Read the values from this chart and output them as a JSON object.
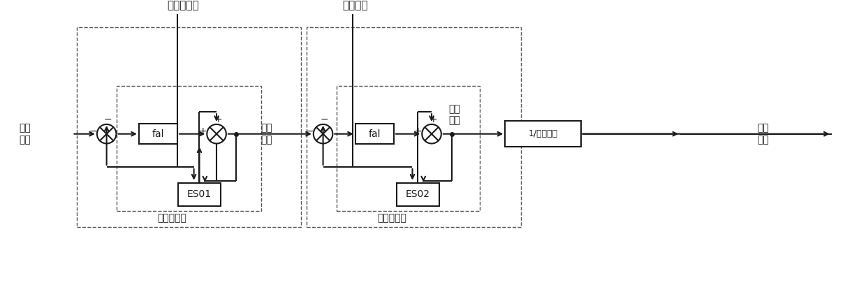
{
  "bg_color": "#ffffff",
  "line_color": "#1a1a1a",
  "dashed_color": "#555555",
  "text_color": "#1a1a1a",
  "figsize": [
    12.4,
    4.18
  ],
  "dpi": 100,
  "labels": {
    "pump_pressure": "泵出口压力",
    "motor_speed": "电机转速",
    "desired_pressure": "期望\n压力",
    "desired_speed": "期望\n转速",
    "desired_torque": "期望\n转矩",
    "desired_current": "期望\n电流",
    "pressure_loop": "压力环控制",
    "speed_loop": "转速环控制",
    "eso1": "ES01",
    "eso2": "ES02",
    "fal": "fal",
    "gain": "1/力矩系数"
  }
}
